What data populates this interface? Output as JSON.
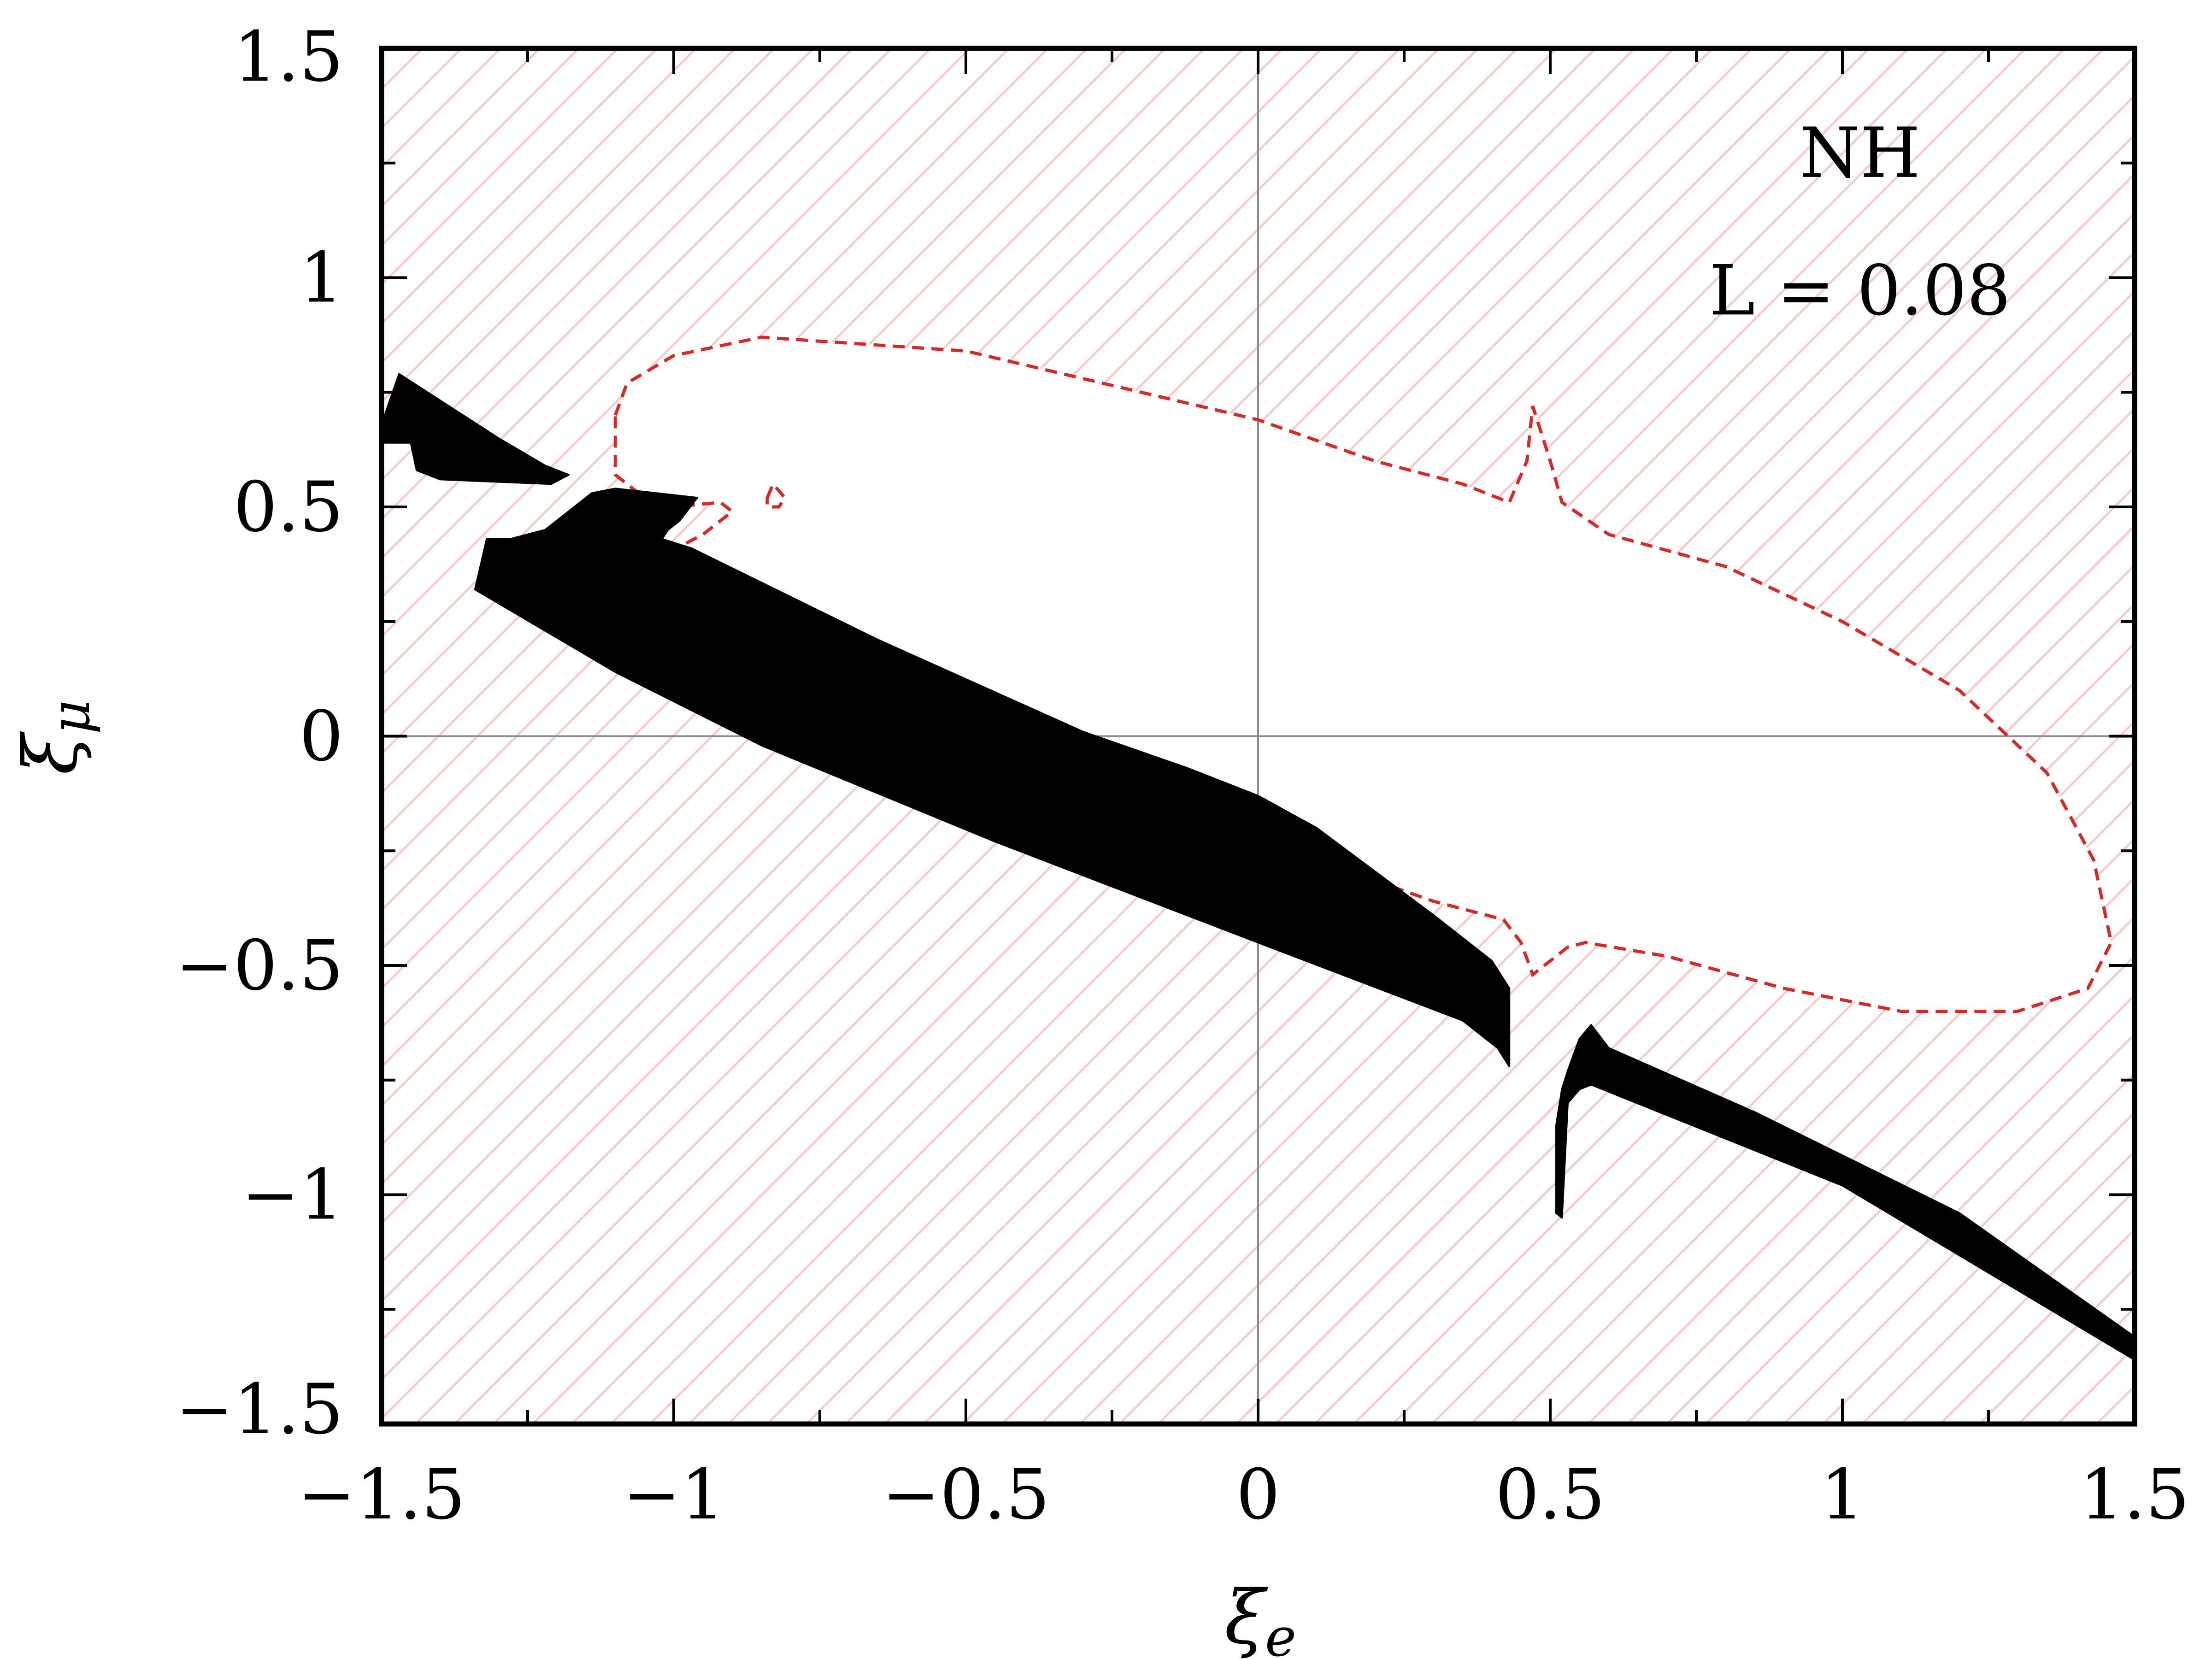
{
  "chart_data": {
    "type": "area",
    "title": "",
    "xlabel": "ξ",
    "xlabel_sub": "e",
    "ylabel": "ξ",
    "ylabel_sub": "μ",
    "xlim": [
      -1.5,
      1.5
    ],
    "ylim": [
      -1.5,
      1.5
    ],
    "x_ticks": [
      -1.5,
      -1,
      -0.5,
      0,
      0.5,
      1,
      1.5
    ],
    "y_ticks": [
      -1.5,
      -1,
      -0.5,
      0,
      0.5,
      1,
      1.5
    ],
    "x_tick_labels": [
      "−1.5",
      "−1",
      "−0.5",
      "0",
      "0.5",
      "1",
      "1.5"
    ],
    "y_tick_labels": [
      "−1.5",
      "−1",
      "−0.5",
      "0",
      "0.5",
      "1",
      "1.5"
    ],
    "minor_tick_step": 0.25,
    "zero_lines": true,
    "grid": false,
    "annotations": [
      {
        "text": "NH",
        "x": 1.03,
        "y": 1.27
      },
      {
        "text": "L = 0.08",
        "x": 1.03,
        "y": 0.97
      }
    ],
    "colors": {
      "hatch": "#f6c9c9",
      "dashed_contour": "#d42a2a",
      "black_region": "#000000",
      "zero_line": "#8c8c8c"
    },
    "regions": [
      {
        "name": "black-region-upper-left",
        "fill": "#000000",
        "points": [
          [
            -1.5,
            0.68
          ],
          [
            -1.47,
            0.79
          ],
          [
            -1.3,
            0.65
          ],
          [
            -1.22,
            0.59
          ],
          [
            -1.18,
            0.57
          ],
          [
            -1.21,
            0.55
          ],
          [
            -1.4,
            0.56
          ],
          [
            -1.44,
            0.58
          ],
          [
            -1.45,
            0.64
          ],
          [
            -1.5,
            0.64
          ]
        ]
      },
      {
        "name": "black-region-main-band",
        "fill": "#000000",
        "points": [
          [
            -1.28,
            0.43
          ],
          [
            -1.22,
            0.45
          ],
          [
            -1.14,
            0.53
          ],
          [
            -1.1,
            0.54
          ],
          [
            -1.03,
            0.53
          ],
          [
            -0.96,
            0.52
          ],
          [
            -0.99,
            0.47
          ],
          [
            -1.01,
            0.45
          ],
          [
            -1.02,
            0.43
          ],
          [
            -0.97,
            0.41
          ],
          [
            -0.65,
            0.21
          ],
          [
            -0.3,
            0.01
          ],
          [
            -0.12,
            -0.07
          ],
          [
            0.0,
            -0.13
          ],
          [
            0.1,
            -0.2
          ],
          [
            0.3,
            -0.39
          ],
          [
            0.4,
            -0.49
          ],
          [
            0.43,
            -0.55
          ],
          [
            0.43,
            -0.72
          ],
          [
            0.41,
            -0.68
          ],
          [
            0.35,
            -0.62
          ],
          [
            0.0,
            -0.45
          ],
          [
            -0.45,
            -0.23
          ],
          [
            -0.85,
            -0.02
          ],
          [
            -1.1,
            0.14
          ],
          [
            -1.3,
            0.29
          ],
          [
            -1.34,
            0.32
          ],
          [
            -1.32,
            0.43
          ]
        ]
      },
      {
        "name": "black-region-lower-right",
        "fill": "#000000",
        "points": [
          [
            0.52,
            -1.05
          ],
          [
            0.53,
            -0.8
          ],
          [
            0.55,
            -0.77
          ],
          [
            0.57,
            -0.76
          ],
          [
            1.0,
            -0.98
          ],
          [
            1.5,
            -1.36
          ],
          [
            1.5,
            -1.31
          ],
          [
            1.4,
            -1.22
          ],
          [
            1.2,
            -1.04
          ],
          [
            0.85,
            -0.82
          ],
          [
            0.6,
            -0.68
          ],
          [
            0.57,
            -0.63
          ],
          [
            0.55,
            -0.66
          ],
          [
            0.53,
            -0.73
          ],
          [
            0.52,
            -0.77
          ],
          [
            0.51,
            -0.85
          ],
          [
            0.51,
            -1.04
          ]
        ]
      }
    ],
    "series": [
      {
        "name": "",
        "style": "dashed",
        "color": "#d42a2a",
        "closed": true,
        "points": [
          [
            -1.1,
            0.7
          ],
          [
            -1.08,
            0.77
          ],
          [
            -1.0,
            0.83
          ],
          [
            -0.85,
            0.87
          ],
          [
            -0.5,
            0.84
          ],
          [
            0.0,
            0.69
          ],
          [
            0.2,
            0.6
          ],
          [
            0.35,
            0.55
          ],
          [
            0.43,
            0.51
          ],
          [
            0.46,
            0.6
          ],
          [
            0.47,
            0.72
          ],
          [
            0.5,
            0.6
          ],
          [
            0.52,
            0.51
          ],
          [
            0.6,
            0.44
          ],
          [
            0.8,
            0.37
          ],
          [
            1.0,
            0.25
          ],
          [
            1.2,
            0.1
          ],
          [
            1.35,
            -0.08
          ],
          [
            1.43,
            -0.27
          ],
          [
            1.46,
            -0.45
          ],
          [
            1.42,
            -0.55
          ],
          [
            1.3,
            -0.6
          ],
          [
            1.1,
            -0.6
          ],
          [
            0.9,
            -0.55
          ],
          [
            0.7,
            -0.48
          ],
          [
            0.56,
            -0.45
          ],
          [
            0.53,
            -0.46
          ],
          [
            0.49,
            -0.5
          ],
          [
            0.47,
            -0.52
          ],
          [
            0.45,
            -0.45
          ],
          [
            0.42,
            -0.4
          ],
          [
            0.3,
            -0.36
          ],
          [
            0.1,
            -0.27
          ],
          [
            0.05,
            -0.26
          ],
          [
            0.0,
            -0.23
          ],
          [
            -0.05,
            -0.2
          ],
          [
            -0.1,
            -0.2
          ],
          [
            -0.2,
            -0.18
          ],
          [
            -0.3,
            -0.14
          ],
          [
            -0.5,
            -0.04
          ],
          [
            -0.7,
            0.06
          ],
          [
            -0.9,
            0.2
          ],
          [
            -0.98,
            0.42
          ],
          [
            -0.95,
            0.44
          ],
          [
            -0.9,
            0.49
          ],
          [
            -0.92,
            0.51
          ],
          [
            -1.0,
            0.5
          ],
          [
            -1.05,
            0.52
          ],
          [
            -1.1,
            0.57
          ]
        ]
      },
      {
        "name": "",
        "style": "dashed",
        "color": "#d42a2a",
        "closed": true,
        "points": [
          [
            -0.84,
            0.52
          ],
          [
            -0.83,
            0.55
          ],
          [
            -0.81,
            0.52
          ],
          [
            -0.82,
            0.5
          ],
          [
            -0.84,
            0.5
          ]
        ]
      }
    ]
  }
}
